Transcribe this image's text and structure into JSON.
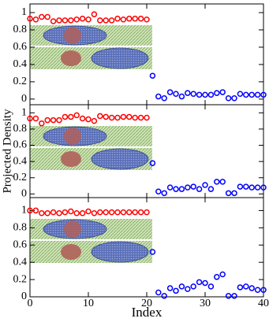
{
  "chart_data": [
    {
      "type": "scatter",
      "xlim": [
        0,
        40
      ],
      "ylim": [
        -0.065,
        1.1
      ],
      "yticks": [
        0,
        0.2,
        0.4,
        0.6,
        0.8,
        1
      ],
      "series": [
        {
          "color": "#ff0000",
          "x": [
            0,
            1,
            2,
            3,
            4,
            5,
            6,
            7,
            8,
            9,
            10,
            11,
            12,
            13,
            14,
            15,
            16,
            17,
            18,
            19,
            20
          ],
          "values": [
            0.93,
            0.92,
            0.95,
            0.95,
            0.9,
            0.91,
            0.91,
            0.91,
            0.92,
            0.93,
            0.92,
            0.98,
            0.91,
            0.91,
            0.91,
            0.93,
            0.92,
            0.93,
            0.93,
            0.93,
            0.92
          ]
        },
        {
          "color": "#0000ff",
          "x": [
            21,
            22,
            23,
            24,
            25,
            26,
            27,
            28,
            29,
            30,
            31,
            32,
            33,
            34,
            35,
            36,
            37,
            38,
            39,
            40
          ],
          "values": [
            0.27,
            0.03,
            0.01,
            0.08,
            0.06,
            0.03,
            0.07,
            0.06,
            0.05,
            0.05,
            0.05,
            0.07,
            0.08,
            0.01,
            0.01,
            0.06,
            0.05,
            0.05,
            0.05,
            0.05
          ]
        }
      ]
    },
    {
      "type": "scatter",
      "ylabel": "Projected Density",
      "xlim": [
        0,
        40
      ],
      "ylim": [
        -0.045,
        1.1
      ],
      "yticks": [
        0,
        0.2,
        0.4,
        0.6,
        0.8,
        1
      ],
      "series": [
        {
          "color": "#ff0000",
          "x": [
            0,
            1,
            2,
            3,
            4,
            5,
            6,
            7,
            8,
            9,
            10,
            11,
            12,
            13,
            14,
            15,
            16,
            17,
            18,
            19,
            20
          ],
          "values": [
            0.93,
            0.93,
            0.87,
            0.91,
            0.91,
            0.91,
            0.95,
            0.95,
            0.97,
            0.93,
            0.92,
            0.9,
            0.96,
            0.95,
            0.94,
            0.94,
            0.95,
            0.95,
            0.94,
            0.94,
            0.94
          ]
        },
        {
          "color": "#0000ff",
          "x": [
            21,
            22,
            23,
            24,
            25,
            26,
            27,
            28,
            29,
            30,
            31,
            32,
            33,
            34,
            35,
            36,
            37,
            38,
            39,
            40
          ],
          "values": [
            0.38,
            0.03,
            0.01,
            0.08,
            0.06,
            0.06,
            0.08,
            0.09,
            0.06,
            0.11,
            0.06,
            0.15,
            0.15,
            0.01,
            0.01,
            0.09,
            0.09,
            0.08,
            0.08,
            0.08
          ]
        }
      ]
    },
    {
      "type": "scatter",
      "xlabel": "Index",
      "xlim": [
        0,
        40
      ],
      "ylim": [
        0,
        1.15
      ],
      "xticks": [
        0,
        10,
        20,
        30,
        40
      ],
      "yticks": [
        0,
        0.2,
        0.4,
        0.6,
        0.8,
        1
      ],
      "series": [
        {
          "color": "#ff0000",
          "x": [
            0,
            1,
            2,
            3,
            4,
            5,
            6,
            7,
            8,
            9,
            10,
            11,
            12,
            13,
            14,
            15,
            16,
            17,
            18,
            19,
            20
          ],
          "values": [
            1.0,
            1.0,
            0.97,
            0.97,
            0.98,
            0.97,
            0.98,
            0.99,
            0.97,
            0.97,
            0.99,
            0.97,
            0.98,
            0.98,
            0.98,
            0.98,
            0.98,
            0.98,
            0.98,
            0.98,
            0.98
          ]
        },
        {
          "color": "#0000ff",
          "x": [
            21,
            22,
            23,
            24,
            25,
            26,
            27,
            28,
            29,
            30,
            31,
            32,
            33,
            34,
            35,
            36,
            37,
            38,
            39,
            40
          ],
          "values": [
            0.52,
            0.05,
            0.01,
            0.1,
            0.07,
            0.12,
            0.09,
            0.12,
            0.17,
            0.16,
            0.12,
            0.23,
            0.26,
            0.01,
            0.01,
            0.11,
            0.12,
            0.1,
            0.08,
            0.08
          ]
        }
      ]
    }
  ]
}
